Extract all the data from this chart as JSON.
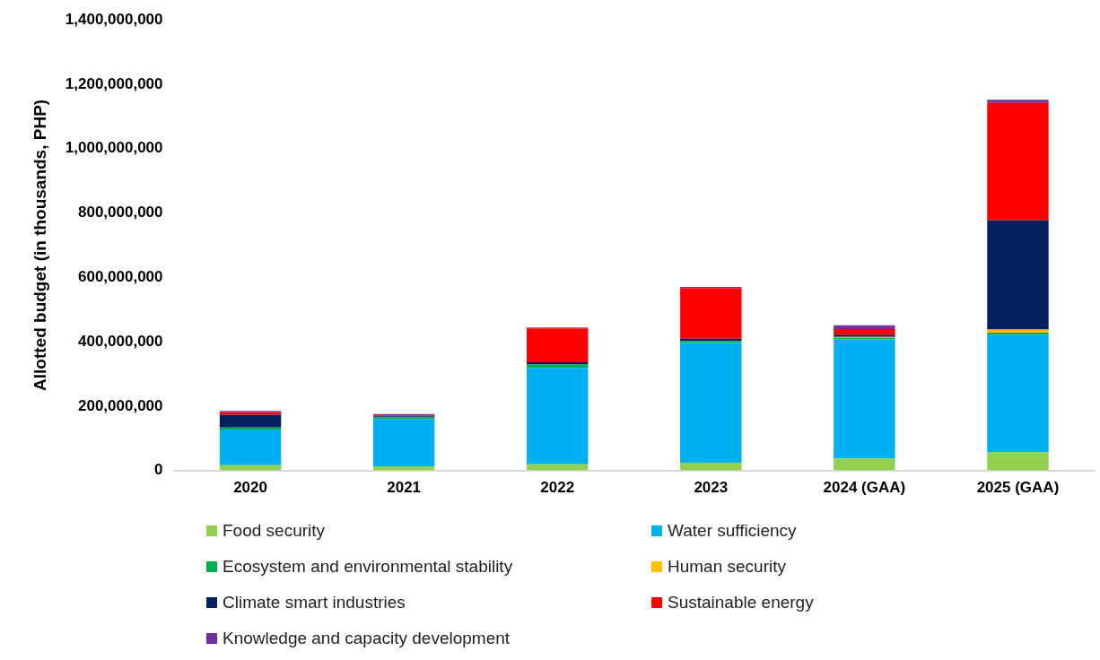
{
  "chart_data": {
    "type": "bar",
    "stacked": true,
    "ylabel": "Allotted budget (in thousands, PHP)",
    "categories": [
      "2020",
      "2021",
      "2022",
      "2023",
      "2024 (GAA)",
      "2025 (GAA)"
    ],
    "series": [
      {
        "name": "Food security",
        "color": "#92d050",
        "values": [
          16000000,
          13000000,
          19000000,
          24000000,
          37000000,
          56000000
        ]
      },
      {
        "name": "Water sufficiency",
        "color": "#00b0f0",
        "values": [
          111000000,
          147000000,
          300000000,
          372000000,
          370000000,
          366000000
        ]
      },
      {
        "name": "Ecosystem and environmental stability",
        "color": "#00b050",
        "values": [
          6000000,
          5000000,
          10000000,
          6000000,
          5000000,
          6000000
        ]
      },
      {
        "name": "Human security",
        "color": "#ffc000",
        "values": [
          null,
          null,
          null,
          null,
          3000000,
          10000000
        ]
      },
      {
        "name": "Climate smart industries",
        "color": "#002060",
        "values": [
          40000000,
          3000000,
          7000000,
          7000000,
          7000000,
          339000000
        ]
      },
      {
        "name": "Sustainable energy",
        "color": "#ff0000",
        "values": [
          8000000,
          3000000,
          105000000,
          158000000,
          17000000,
          365000000
        ]
      },
      {
        "name": "Knowledge and capacity development",
        "color": "#7030a0",
        "values": [
          4000000,
          4000000,
          3000000,
          3000000,
          12000000,
          10000000
        ]
      }
    ],
    "ylim": [
      0,
      1400000000
    ],
    "yticks": [
      0,
      {
        "value": 200000000,
        "label": "200,000,000"
      },
      {
        "value": 400000000,
        "label": "400,000,000"
      },
      {
        "value": 600000000,
        "label": "600,000,000"
      },
      {
        "value": 800000000,
        "label": "800,000,000"
      },
      {
        "value": 1000000000,
        "label": "1,000,000,000"
      },
      {
        "value": 1200000000,
        "label": "1,200,000,000"
      },
      {
        "value": 1400000000,
        "label": "1,400,000,000"
      }
    ],
    "grid": false,
    "legend": "bottom"
  }
}
